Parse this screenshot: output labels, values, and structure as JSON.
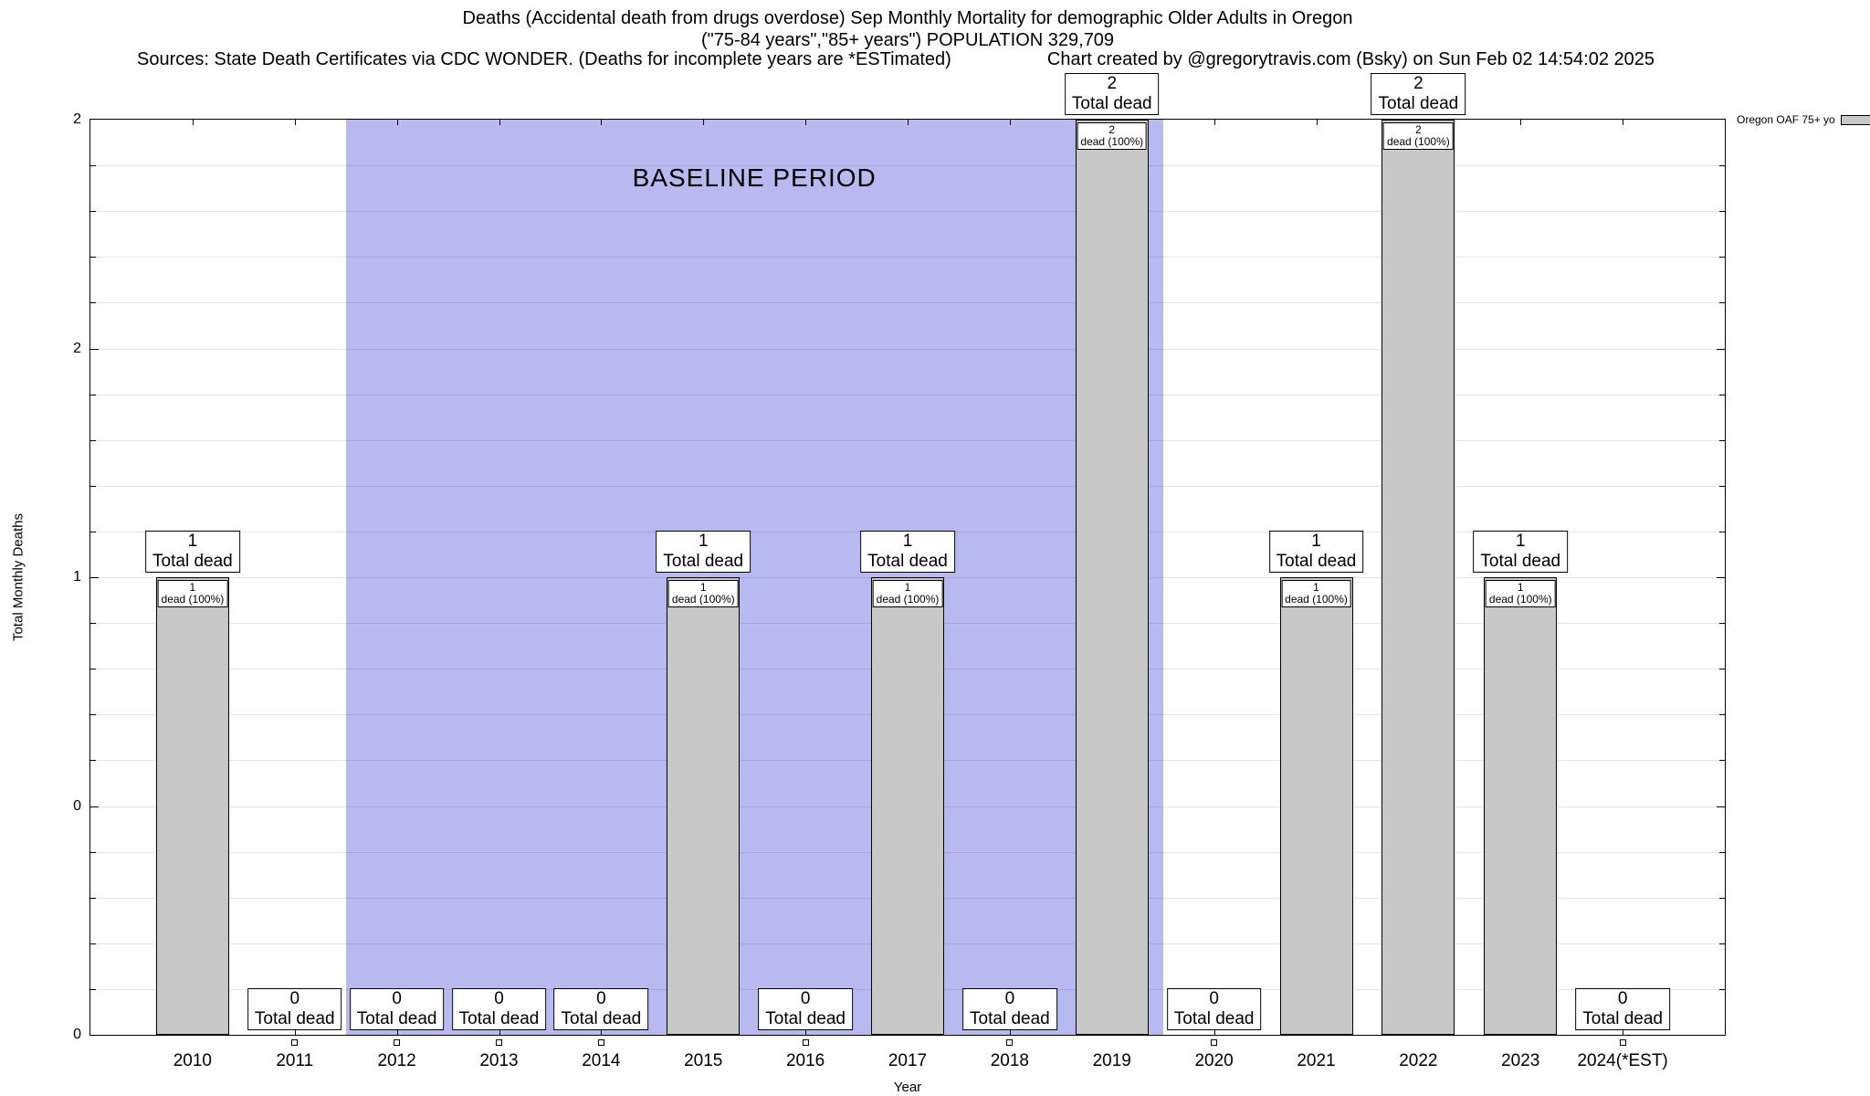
{
  "header": {
    "title_line1": "Deaths (Accidental death from drugs overdose) Sep Monthly Mortality for demographic Older Adults in Oregon",
    "title_line2": "(\"75-84 years\",\"85+ years\") POPULATION 329,709",
    "sources": "Sources: State Death Certificates via CDC WONDER. (Deaths for incomplete years are *ESTimated)",
    "credit": "Chart created by @gregorytravis.com (Bsky) on Sun Feb 02 14:54:02 2025"
  },
  "chart_data": {
    "type": "bar",
    "title": "Deaths (Accidental death from drugs overdose) Sep Monthly Mortality for demographic Older Adults in Oregon",
    "subtitle": "(\"75-84 years\",\"85+ years\") POPULATION 329,709",
    "xlabel": "Year",
    "ylabel": "Total Monthly Deaths",
    "ylim": [
      0,
      2
    ],
    "grid": true,
    "minor_grid_step": 0.1,
    "y_ticks": [
      {
        "value": 0,
        "label": "0"
      },
      {
        "value": 0.5,
        "label": "0"
      },
      {
        "value": 1,
        "label": "1"
      },
      {
        "value": 1.5,
        "label": "2"
      },
      {
        "value": 2,
        "label": "2"
      }
    ],
    "categories": [
      "2010",
      "2011",
      "2012",
      "2013",
      "2014",
      "2015",
      "2016",
      "2017",
      "2018",
      "2019",
      "2020",
      "2021",
      "2022",
      "2023",
      "2024(*EST)"
    ],
    "values": [
      1,
      0,
      0,
      0,
      0,
      1,
      0,
      1,
      0,
      2,
      0,
      1,
      2,
      1,
      0
    ],
    "total_label": "Total dead",
    "inner_label": "dead (100%)",
    "baseline": {
      "label": "BASELINE PERIOD",
      "start_year": "2012",
      "end_year": "2019",
      "start_index": 2,
      "end_index": 9
    },
    "legend": {
      "label": "Oregon OAF 75+ yo",
      "position": "top-right-outside"
    },
    "colors": {
      "bar": "#c8c8c8",
      "baseline": "#b9b9f2",
      "border": "#000000",
      "background": "#ffffff"
    }
  }
}
